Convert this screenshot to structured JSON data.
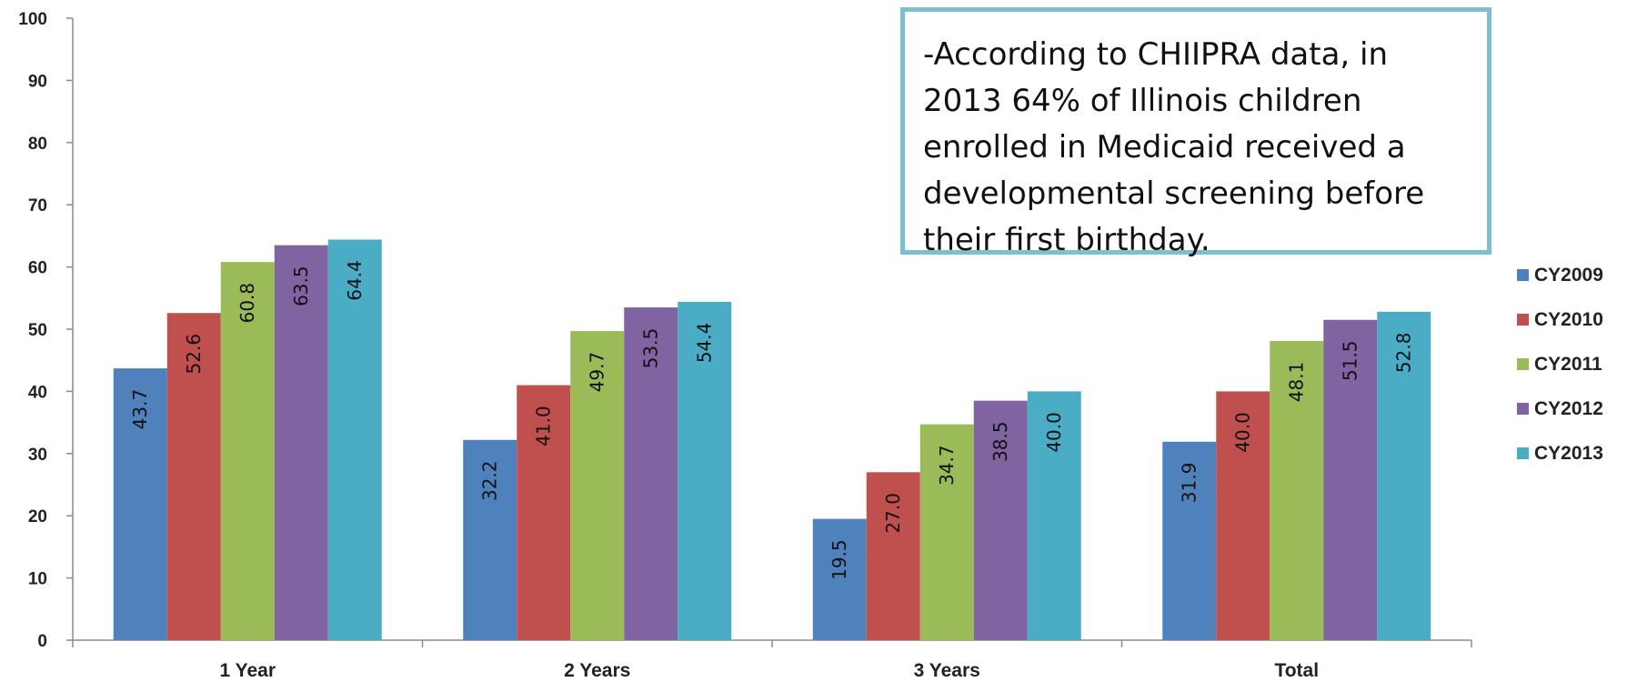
{
  "annotation": {
    "text": "-According to CHIIPRA data, in 2013 64% of Illinois children enrolled in Medicaid received a developmental screening before their first birthday."
  },
  "chart_data": {
    "type": "bar",
    "categories": [
      "1 Year",
      "2 Years",
      "3 Years",
      "Total"
    ],
    "series": [
      {
        "name": "CY2009",
        "color": "#4f81bd",
        "values": [
          43.7,
          32.2,
          19.5,
          31.9
        ]
      },
      {
        "name": "CY2010",
        "color": "#c0504d",
        "values": [
          52.6,
          41.0,
          27.0,
          40.0
        ]
      },
      {
        "name": "CY2011",
        "color": "#9bbb59",
        "values": [
          60.8,
          49.7,
          34.7,
          48.1
        ]
      },
      {
        "name": "CY2012",
        "color": "#8064a2",
        "values": [
          63.5,
          53.5,
          38.5,
          51.5
        ]
      },
      {
        "name": "CY2013",
        "color": "#4bacc6",
        "values": [
          64.4,
          54.4,
          40.0,
          52.8
        ]
      }
    ],
    "ylim": [
      0,
      100
    ],
    "yticks": [
      0,
      10,
      20,
      30,
      40,
      50,
      60,
      70,
      80,
      90,
      100
    ],
    "legend_position": "right",
    "grid": false
  }
}
